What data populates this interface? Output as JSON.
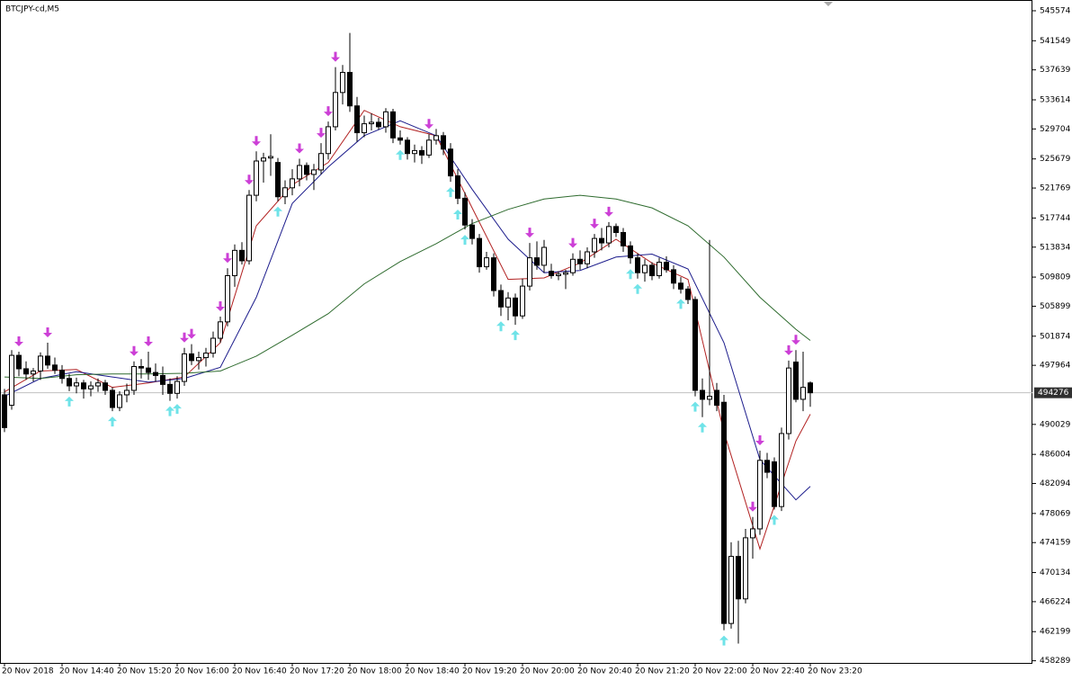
{
  "chart_data": {
    "type": "candlestick",
    "title": "BTCJPY-cd,M5",
    "ylim": [
      458000,
      546900
    ],
    "yticks": [
      545574,
      541549,
      537639,
      533614,
      529704,
      525679,
      521769,
      517744,
      513834,
      509809,
      505899,
      501874,
      497964,
      490029,
      486004,
      482094,
      478069,
      474159,
      470134,
      466224,
      462199,
      458289
    ],
    "xticks": [
      {
        "value": 0,
        "label": "20 Nov 2018"
      },
      {
        "value": 8,
        "label": "20 Nov 14:40"
      },
      {
        "value": 16,
        "label": "20 Nov 15:20"
      },
      {
        "value": 24,
        "label": "20 Nov 16:00"
      },
      {
        "value": 32,
        "label": "20 Nov 16:40"
      },
      {
        "value": 40,
        "label": "20 Nov 17:20"
      },
      {
        "value": 48,
        "label": "20 Nov 18:00"
      },
      {
        "value": 56,
        "label": "20 Nov 18:40"
      },
      {
        "value": 64,
        "label": "20 Nov 19:20"
      },
      {
        "value": 72,
        "label": "20 Nov 20:00"
      },
      {
        "value": 80,
        "label": "20 Nov 20:40"
      },
      {
        "value": 88,
        "label": "20 Nov 21:20"
      },
      {
        "value": 96,
        "label": "20 Nov 22:00"
      },
      {
        "value": 104,
        "label": "20 Nov 22:40"
      },
      {
        "value": 112,
        "label": "20 Nov 23:20"
      }
    ],
    "current_price": 494276,
    "open": [
      494000,
      492600,
      499300,
      497500,
      496800,
      497200,
      499200,
      498000,
      497300,
      496200,
      495200,
      495600,
      494800,
      495200,
      495600,
      494600,
      492300,
      494000,
      494600,
      497800,
      497600,
      497000,
      496600,
      495400,
      494200,
      495800,
      499500,
      498600,
      499000,
      499600,
      501600,
      503800,
      510000,
      513400,
      512000,
      520800,
      525400,
      525800,
      525200,
      520600,
      521800,
      523000,
      524800,
      523600,
      524200,
      526400,
      530000,
      534600,
      537300,
      532800,
      529200,
      530400,
      530600,
      530000,
      532000,
      528500,
      528200,
      526400,
      526800,
      526200,
      528200,
      528800,
      527000,
      523400,
      520400,
      516800,
      515000,
      511200,
      512400,
      508000,
      505800,
      507000,
      504600,
      508600,
      512400,
      511400,
      510600,
      510000,
      510200,
      510400,
      512200,
      511600,
      513200,
      515000,
      514400,
      516600,
      515800,
      514000,
      512400,
      510400,
      511400,
      510000,
      511800,
      510800,
      509000,
      508200,
      506800,
      494600,
      493400,
      494600,
      493000,
      463300,
      472300,
      466600,
      474800,
      476000,
      485200,
      485000,
      479000,
      488800,
      498400,
      493400,
      495600
    ],
    "high": [
      494800,
      500000,
      499800,
      498500,
      497600,
      499700,
      501000,
      499000,
      498000,
      496800,
      496300,
      496000,
      495800,
      496200,
      496000,
      495000,
      494500,
      495500,
      498500,
      498800,
      499800,
      498200,
      497800,
      496200,
      496500,
      500300,
      500800,
      499800,
      500300,
      502500,
      504500,
      511000,
      514200,
      514500,
      521500,
      526700,
      526500,
      529000,
      525800,
      522800,
      524300,
      525700,
      525200,
      525000,
      527800,
      530700,
      538000,
      538300,
      542600,
      534000,
      531500,
      531800,
      531200,
      532500,
      532400,
      529500,
      528600,
      527600,
      527400,
      529000,
      529700,
      529300,
      527800,
      524300,
      521200,
      517600,
      515600,
      513200,
      513000,
      508800,
      507800,
      507600,
      509600,
      514400,
      514600,
      514800,
      511600,
      510600,
      510800,
      513000,
      513400,
      513800,
      515600,
      516400,
      517200,
      517000,
      516400,
      514600,
      513000,
      512200,
      511800,
      512400,
      512600,
      511400,
      509800,
      508600,
      507200,
      496200,
      514800,
      495600,
      494000,
      474200,
      474400,
      476000,
      477600,
      486500,
      486200,
      485600,
      489600,
      498600,
      500000,
      499800,
      495800
    ],
    "low": [
      489000,
      492000,
      496500,
      496000,
      495800,
      496000,
      497500,
      496800,
      495500,
      494500,
      494200,
      493500,
      493800,
      494400,
      494000,
      491800,
      491800,
      493000,
      494000,
      496200,
      496000,
      495800,
      494000,
      493200,
      493500,
      495200,
      498000,
      497400,
      497800,
      499000,
      501000,
      503200,
      508500,
      511500,
      511500,
      520000,
      522500,
      523400,
      520000,
      519600,
      520800,
      522000,
      522800,
      521500,
      523600,
      525600,
      529500,
      533000,
      532000,
      528000,
      528600,
      529500,
      529600,
      529200,
      527800,
      527600,
      525600,
      525200,
      525000,
      525800,
      527600,
      526200,
      522600,
      519600,
      516200,
      514200,
      510400,
      510800,
      507200,
      504600,
      504000,
      503400,
      504200,
      508000,
      510800,
      510400,
      509600,
      509400,
      508200,
      510000,
      510800,
      511000,
      512400,
      513400,
      513800,
      515200,
      513200,
      511600,
      509600,
      509200,
      509400,
      509600,
      510400,
      508200,
      507600,
      506200,
      493800,
      491000,
      492600,
      491800,
      462400,
      462600,
      460600,
      466000,
      472000,
      475200,
      482800,
      478600,
      478400,
      488000,
      493000,
      491800,
      492400
    ],
    "close": [
      489600,
      499300,
      497500,
      496800,
      497200,
      499200,
      498000,
      497300,
      496200,
      495200,
      495600,
      494800,
      495200,
      495600,
      494600,
      492300,
      494000,
      494600,
      497800,
      497600,
      497000,
      496600,
      495400,
      494200,
      495800,
      499500,
      498600,
      499000,
      499600,
      501600,
      503800,
      510000,
      513400,
      512000,
      520800,
      525400,
      525800,
      526000,
      520600,
      521800,
      523000,
      524800,
      523600,
      524200,
      526400,
      530000,
      534600,
      537300,
      532800,
      529200,
      530400,
      530600,
      530000,
      532000,
      528500,
      528200,
      526400,
      526800,
      526200,
      528200,
      528800,
      527000,
      523400,
      520400,
      516800,
      515000,
      511200,
      512400,
      508000,
      505800,
      507000,
      504600,
      508600,
      512400,
      511400,
      513800,
      510000,
      510200,
      510400,
      512200,
      511600,
      513200,
      515000,
      514400,
      516600,
      515800,
      514000,
      512400,
      510400,
      511400,
      510000,
      511800,
      510800,
      509000,
      508200,
      506800,
      494600,
      493400,
      493800,
      492600,
      463300,
      472300,
      466600,
      474800,
      476000,
      485200,
      483600,
      479000,
      488800,
      497600,
      493400,
      495000,
      494276
    ],
    "lines": [
      {
        "color": "#b22222",
        "x": [
          0,
          5,
          10,
          15,
          20,
          25,
          30,
          35,
          40,
          45,
          50,
          55,
          60,
          65,
          70,
          75,
          80,
          85,
          90,
          95,
          100,
          105,
          110,
          112
        ],
        "values": [
          494400,
          497200,
          497400,
          495000,
          495600,
          496400,
          501000,
          516700,
          522200,
          525200,
          532200,
          530000,
          528800,
          519100,
          509500,
          509700,
          511700,
          514900,
          511700,
          509500,
          489000,
          473300,
          487800,
          491400
        ]
      },
      {
        "color": "#1c1c8c",
        "x": [
          0,
          5,
          10,
          15,
          20,
          25,
          30,
          35,
          40,
          45,
          50,
          55,
          60,
          65,
          70,
          75,
          80,
          85,
          90,
          95,
          100,
          105,
          110,
          112
        ],
        "values": [
          493800,
          496200,
          497100,
          496400,
          495700,
          496200,
          497700,
          507100,
          519700,
          524600,
          528800,
          530800,
          528800,
          521600,
          514900,
          510400,
          510700,
          512500,
          512900,
          510900,
          501000,
          485300,
          479900,
          481700
        ]
      },
      {
        "color": "#2e6b2e",
        "x": [
          0,
          5,
          10,
          15,
          20,
          25,
          30,
          35,
          40,
          45,
          50,
          55,
          60,
          65,
          70,
          75,
          80,
          85,
          90,
          95,
          100,
          105,
          110,
          112
        ],
        "values": [
          496400,
          496200,
          496700,
          496800,
          496800,
          496900,
          497200,
          499200,
          502000,
          504900,
          508900,
          511900,
          514300,
          517000,
          518900,
          520300,
          520800,
          520300,
          519100,
          516700,
          512500,
          507100,
          502800,
          501300
        ]
      }
    ],
    "down_arrows": {
      "color": "#cc3fd6",
      "index": [
        2,
        6,
        18,
        20,
        25,
        26,
        30,
        31,
        34,
        35,
        41,
        44,
        45,
        46,
        59,
        73,
        79,
        82,
        84,
        104,
        105,
        109,
        110
      ]
    },
    "up_arrows": {
      "color": "#6fe3e8",
      "index": [
        9,
        15,
        23,
        24,
        38,
        55,
        62,
        63,
        64,
        69,
        71,
        87,
        88,
        94,
        96,
        97,
        100,
        107
      ]
    }
  }
}
